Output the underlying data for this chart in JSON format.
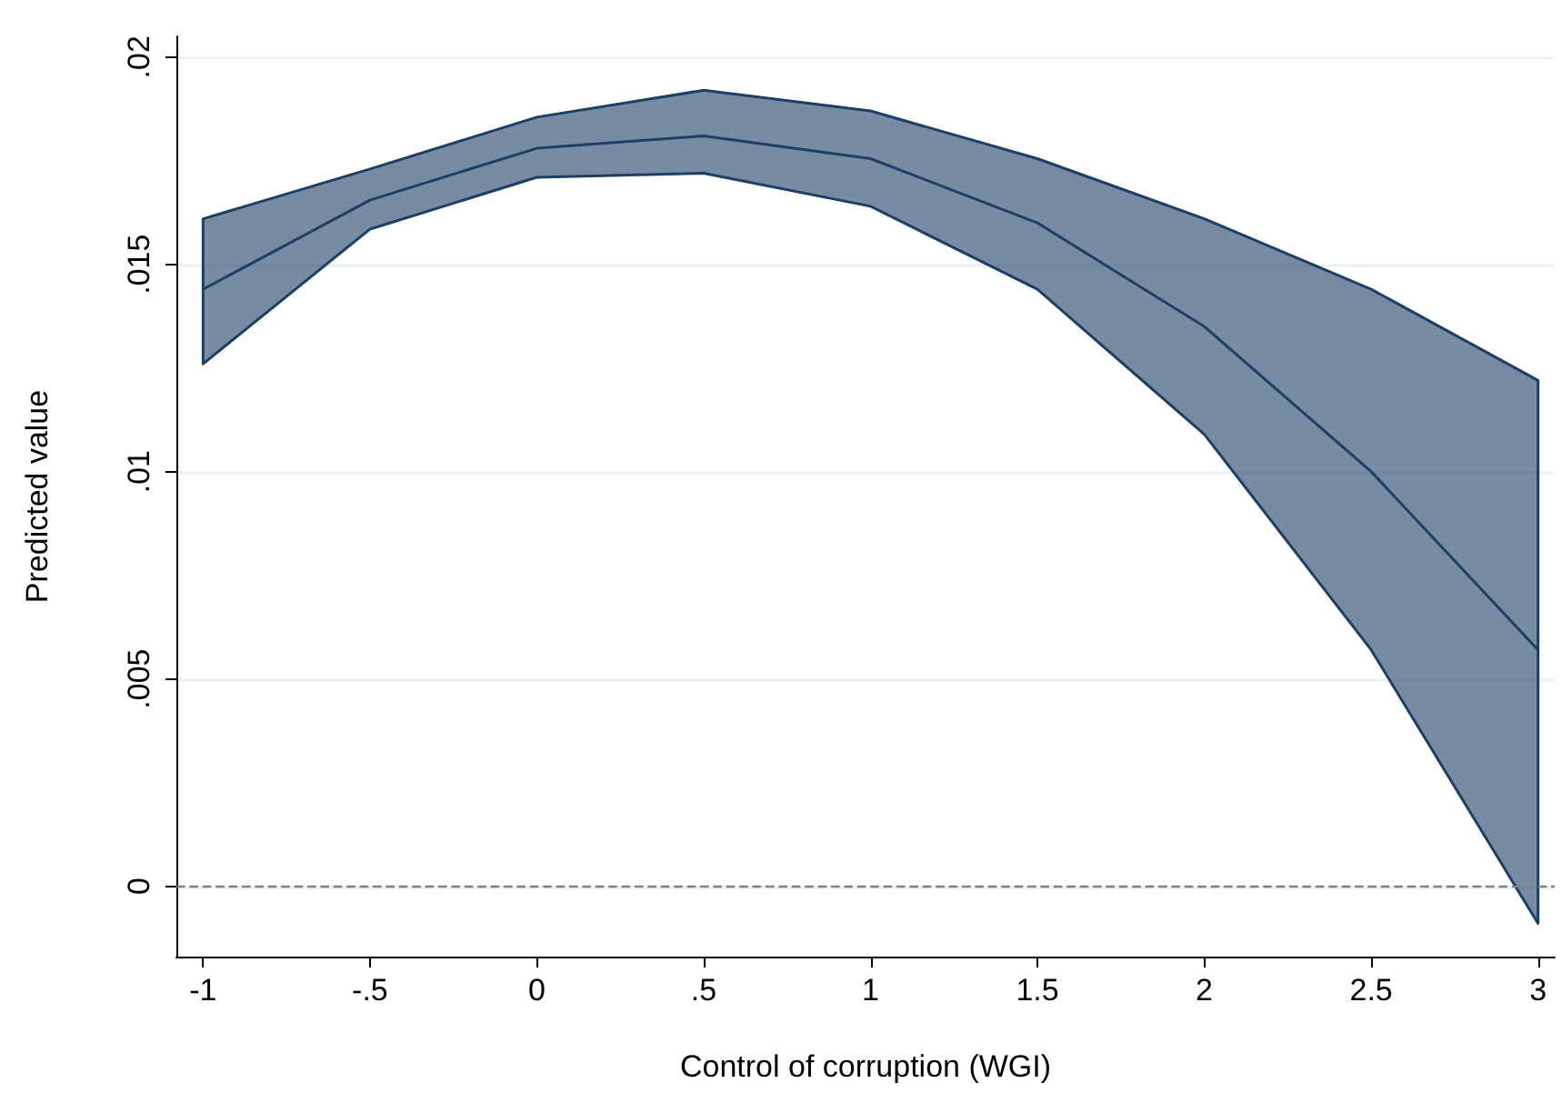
{
  "chart_data": {
    "type": "line",
    "xlabel": "Control of corruption (WGI)",
    "ylabel": "Predicted value",
    "x": [
      -1,
      -0.5,
      0,
      0.5,
      1,
      1.5,
      2,
      2.5,
      3
    ],
    "series": [
      {
        "color": "#1c3f66",
        "values": [
          0.0144,
          0.01655,
          0.0178,
          0.0181,
          0.01755,
          0.016,
          0.0135,
          0.01,
          0.0057
        ],
        "lower": [
          0.0126,
          0.01585,
          0.0171,
          0.0172,
          0.0164,
          0.0144,
          0.0109,
          0.0057,
          -0.0009
        ],
        "upper": [
          0.0161,
          0.0173,
          0.01855,
          0.0192,
          0.0187,
          0.01755,
          0.0161,
          0.0144,
          0.0122
        ]
      }
    ],
    "xlim": [
      -1.08,
      3.05
    ],
    "ylim": [
      -0.0017,
      0.0205
    ],
    "xticks": [
      -1,
      {
        "value": -0.5,
        "label": "-.5"
      },
      0,
      {
        "value": 0.5,
        "label": ".5"
      },
      1,
      1.5,
      2,
      2.5,
      3
    ],
    "yticks": [
      0,
      {
        "value": 0.005,
        "label": ".005"
      },
      {
        "value": 0.01,
        "label": ".01"
      },
      {
        "value": 0.015,
        "label": ".015"
      },
      {
        "value": 0.02,
        "label": ".02"
      }
    ],
    "ref_lines": [
      {
        "axis": "y",
        "value": 0,
        "color": "#808080",
        "line_style": "dashed"
      }
    ],
    "grid": "y",
    "legend": false,
    "marker": "none",
    "line_style": "solid"
  }
}
